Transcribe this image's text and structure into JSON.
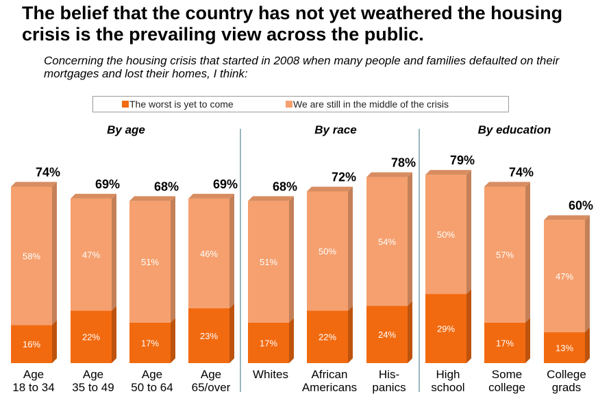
{
  "title": "The belief that the country has not yet weathered the housing crisis is the prevailing view across the public.",
  "subtitle": "Concerning the housing crisis that started in 2008 when many people and families defaulted on their mortgages and lost their homes, I think:",
  "chart_data": {
    "type": "bar",
    "stacked": true,
    "title": "The belief that the country has not yet weathered the housing crisis is the prevailing view across the public.",
    "subtitle": "Concerning the housing crisis that started in 2008 when many people and families defaulted on their mortgages and lost their homes, I think:",
    "groups": [
      {
        "label": "By age",
        "categories": [
          0,
          1,
          2,
          3
        ]
      },
      {
        "label": "By race",
        "categories": [
          4,
          5,
          6
        ]
      },
      {
        "label": "By education",
        "categories": [
          7,
          8,
          9
        ]
      }
    ],
    "categories": [
      [
        "Age",
        "18 to 34"
      ],
      [
        "Age",
        "35 to 49"
      ],
      [
        "Age",
        "50 to 64"
      ],
      [
        "Age",
        "65/over"
      ],
      [
        "Whites"
      ],
      [
        "African",
        "Americans"
      ],
      [
        "His-",
        "panics"
      ],
      [
        "High",
        "school"
      ],
      [
        "Some",
        "college"
      ],
      [
        "College",
        "grads"
      ]
    ],
    "series": [
      {
        "name": "The worst is yet to come",
        "color": "#f26a10",
        "values": [
          16,
          22,
          17,
          23,
          17,
          22,
          24,
          29,
          17,
          13
        ],
        "labels": [
          "16%",
          "22%",
          "17%",
          "23%",
          "17%",
          "22%",
          "24%",
          "29%",
          "17%",
          "13%"
        ]
      },
      {
        "name": "We are still in the middle of the crisis",
        "color": "#f5a06e",
        "values": [
          58,
          47,
          51,
          46,
          51,
          50,
          54,
          50,
          57,
          47
        ],
        "labels": [
          "58%",
          "47%",
          "51%",
          "46%",
          "51%",
          "50%",
          "54%",
          "50%",
          "57%",
          "47%"
        ]
      }
    ],
    "totals": [
      74,
      69,
      68,
      69,
      68,
      72,
      78,
      79,
      74,
      60
    ],
    "total_labels": [
      "74%",
      "69%",
      "68%",
      "69%",
      "68%",
      "72%",
      "78%",
      "79%",
      "74%",
      "60%"
    ],
    "ylim": [
      0,
      80
    ],
    "legend": "top-center",
    "grid": false
  }
}
